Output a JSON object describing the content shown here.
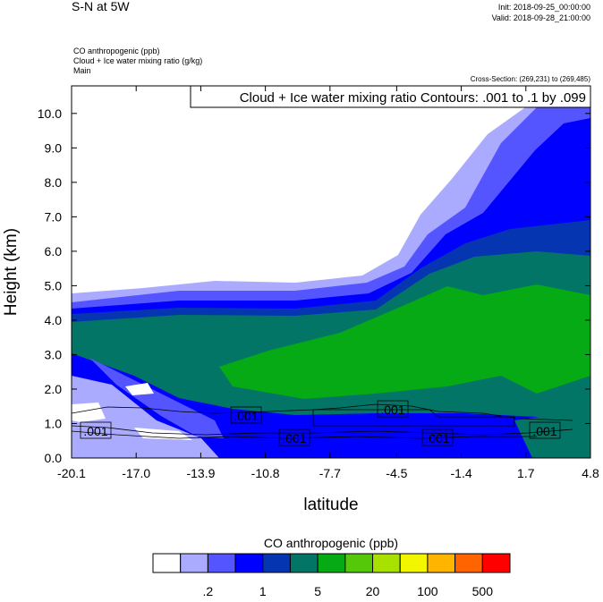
{
  "header": {
    "title": "S-N at 5W",
    "init": "Init: 2018-09-25_00:00:00",
    "valid": "Valid: 2018-09-28_21:00:00",
    "fields": [
      "CO anthropogenic   (ppb)",
      "Cloud + Ice water mixing ratio   (g/kg)",
      "Main"
    ],
    "cross_section": "Cross-Section: (269,231) to (269,485)"
  },
  "chart_data": {
    "type": "heatmap",
    "title": "Cloud + Ice water mixing ratio Contours: .001 to .1 by .099",
    "xlabel": "latitude",
    "ylabel": "Height (km)",
    "xlim": [
      -20.1,
      4.8
    ],
    "ylim": [
      0,
      10.8
    ],
    "xticks": [
      "-20.1",
      "-17.0",
      "-13.9",
      "-10.8",
      "-7.7",
      "-4.5",
      "-1.4",
      "1.7",
      "4.8"
    ],
    "yticks": [
      "0.0",
      "1.0",
      "2.0",
      "3.0",
      "4.0",
      "5.0",
      "6.0",
      "7.0",
      "8.0",
      "9.0",
      "10.0"
    ],
    "contour_labels": [
      ".001",
      ".001",
      ".001",
      ".001",
      ".001",
      ".001"
    ],
    "colorbar": {
      "title": "CO anthropogenic  (ppb)",
      "colors": [
        "#ffffff",
        "#aaaaff",
        "#5555ff",
        "#0000ff",
        "#0535b0",
        "#037566",
        "#06aa14",
        "#55c80a",
        "#a8e000",
        "#f2f700",
        "#ffb400",
        "#ff6400",
        "#ff0000"
      ],
      "labels": [
        ".2",
        "1",
        "5",
        "20",
        "100",
        "500"
      ]
    }
  }
}
